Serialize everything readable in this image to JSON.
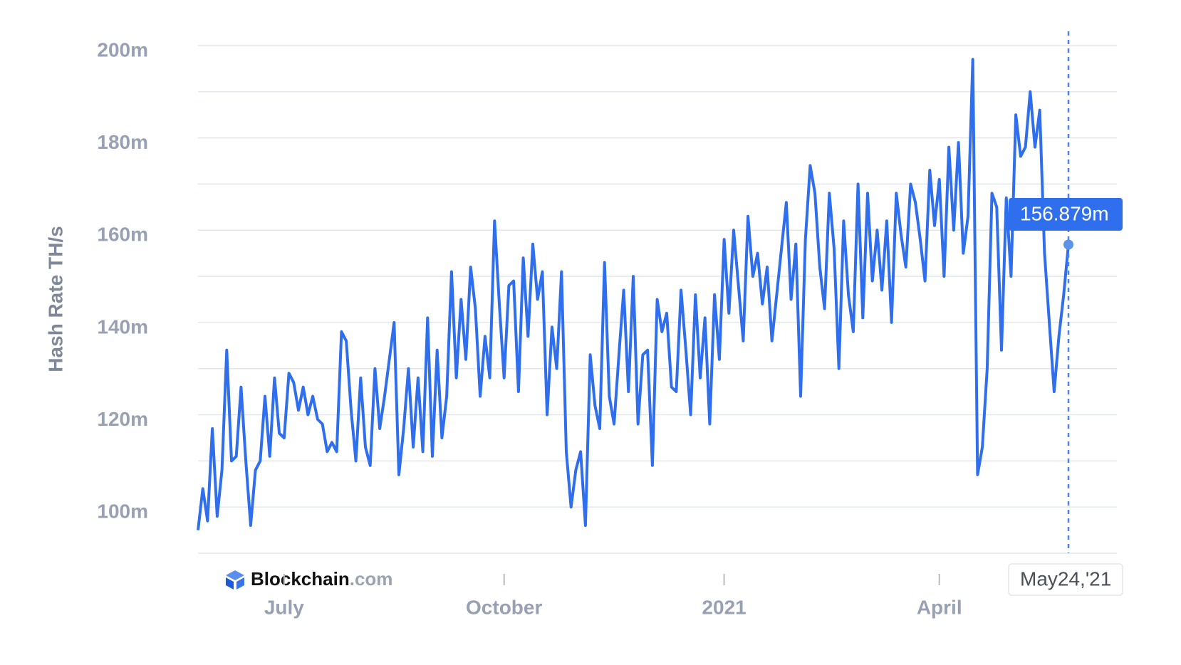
{
  "brand": {
    "name": "Blockchain",
    "suffix": ".com"
  },
  "chart_data": {
    "type": "line",
    "y_label": "Hash Rate TH/s",
    "color": "#2f6fed",
    "ylim": [
      90,
      200
    ],
    "yticks": [
      {
        "value": 100,
        "label": "100m"
      },
      {
        "value": 120,
        "label": "120m"
      },
      {
        "value": 140,
        "label": "140m"
      },
      {
        "value": 160,
        "label": "160m"
      },
      {
        "value": 180,
        "label": "180m"
      },
      {
        "value": 200,
        "label": "200m"
      }
    ],
    "minor_yticks": [
      90,
      110,
      130,
      150,
      170,
      190
    ],
    "grid": true,
    "categories": [
      null,
      null,
      null,
      null,
      null,
      null,
      null,
      null,
      null,
      null,
      null,
      null,
      null,
      null,
      null,
      null,
      null,
      null,
      "July",
      null,
      null,
      null,
      null,
      null,
      null,
      null,
      null,
      null,
      null,
      null,
      null,
      null,
      null,
      null,
      null,
      null,
      null,
      null,
      null,
      null,
      null,
      null,
      null,
      null,
      null,
      null,
      null,
      null,
      null,
      null,
      null,
      null,
      null,
      null,
      null,
      null,
      null,
      null,
      null,
      null,
      null,
      null,
      null,
      null,
      "October",
      null,
      null,
      null,
      null,
      null,
      null,
      null,
      null,
      null,
      null,
      null,
      null,
      null,
      null,
      null,
      null,
      null,
      null,
      null,
      null,
      null,
      null,
      null,
      null,
      null,
      null,
      null,
      null,
      null,
      null,
      null,
      null,
      null,
      null,
      null,
      null,
      null,
      null,
      null,
      null,
      null,
      null,
      null,
      null,
      null,
      "2021",
      null,
      null,
      null,
      null,
      null,
      null,
      null,
      null,
      null,
      null,
      null,
      null,
      null,
      null,
      null,
      null,
      null,
      null,
      null,
      null,
      null,
      null,
      null,
      null,
      null,
      null,
      null,
      null,
      null,
      null,
      null,
      null,
      null,
      null,
      null,
      null,
      null,
      null,
      null,
      null,
      null,
      null,
      null,
      null,
      "April",
      null,
      null,
      null,
      null,
      null,
      null,
      null,
      null,
      null,
      null,
      null,
      null,
      null,
      null,
      null,
      null,
      null,
      null,
      null,
      null,
      null,
      null,
      null,
      null,
      null,
      null,
      "May24,'21"
    ],
    "values": [
      95,
      104,
      97,
      117,
      98,
      108,
      134,
      110,
      111,
      126,
      110,
      96,
      108,
      110,
      124,
      111,
      128,
      116,
      115,
      129,
      127,
      121,
      126,
      120,
      124,
      119,
      118,
      112,
      114,
      112,
      138,
      136,
      121,
      110,
      128,
      113,
      109,
      130,
      117,
      124,
      132,
      140,
      107,
      117,
      130,
      113,
      128,
      112,
      141,
      111,
      134,
      115,
      124,
      151,
      128,
      145,
      132,
      152,
      143,
      124,
      137,
      128,
      162,
      144,
      128,
      148,
      149,
      125,
      154,
      137,
      157,
      145,
      151,
      120,
      139,
      130,
      151,
      112,
      100,
      108,
      112,
      96,
      133,
      122,
      117,
      153,
      124,
      118,
      133,
      147,
      125,
      150,
      118,
      133,
      134,
      109,
      145,
      138,
      142,
      126,
      125,
      147,
      134,
      120,
      146,
      128,
      141,
      118,
      146,
      132,
      158,
      142,
      160,
      148,
      136,
      163,
      150,
      155,
      144,
      152,
      136,
      146,
      156,
      166,
      145,
      157,
      124,
      158,
      174,
      168,
      152,
      143,
      168,
      156,
      130,
      162,
      146,
      138,
      170,
      141,
      168,
      149,
      160,
      147,
      162,
      140,
      168,
      159,
      152,
      170,
      166,
      158,
      149,
      173,
      161,
      171,
      150,
      178,
      160,
      179,
      155,
      163,
      197,
      107,
      113,
      130,
      168,
      165,
      134,
      167,
      150,
      185,
      176,
      178,
      190,
      178,
      186,
      155,
      140,
      125,
      137,
      146,
      156.879
    ],
    "value_labels": [
      null,
      null,
      null,
      null,
      null,
      null,
      null,
      null,
      null,
      null,
      null,
      null,
      null,
      null,
      null,
      null,
      null,
      null,
      null,
      null,
      null,
      null,
      null,
      null,
      null,
      null,
      null,
      null,
      null,
      null,
      null,
      null,
      null,
      null,
      null,
      null,
      null,
      null,
      null,
      null,
      null,
      null,
      null,
      null,
      null,
      null,
      null,
      null,
      null,
      null,
      null,
      null,
      null,
      null,
      null,
      null,
      null,
      null,
      null,
      null,
      null,
      null,
      null,
      null,
      null,
      null,
      null,
      null,
      null,
      null,
      null,
      null,
      null,
      null,
      null,
      null,
      null,
      null,
      null,
      null,
      null,
      null,
      null,
      null,
      null,
      null,
      null,
      null,
      null,
      null,
      null,
      null,
      null,
      null,
      null,
      null,
      null,
      null,
      null,
      null,
      null,
      null,
      null,
      null,
      null,
      null,
      null,
      null,
      null,
      null,
      null,
      null,
      null,
      null,
      null,
      null,
      null,
      null,
      null,
      null,
      null,
      null,
      null,
      null,
      null,
      null,
      null,
      null,
      null,
      null,
      null,
      null,
      null,
      null,
      null,
      null,
      null,
      null,
      null,
      null,
      null,
      null,
      null,
      null,
      null,
      null,
      null,
      null,
      null,
      null,
      null,
      null,
      null,
      null,
      null,
      null,
      null,
      null,
      null,
      null,
      null,
      null,
      null,
      null,
      null,
      null,
      null,
      null,
      null,
      null,
      null,
      null,
      null,
      null,
      null,
      null,
      null,
      null,
      null,
      null,
      null,
      null,
      "156.879m"
    ]
  }
}
